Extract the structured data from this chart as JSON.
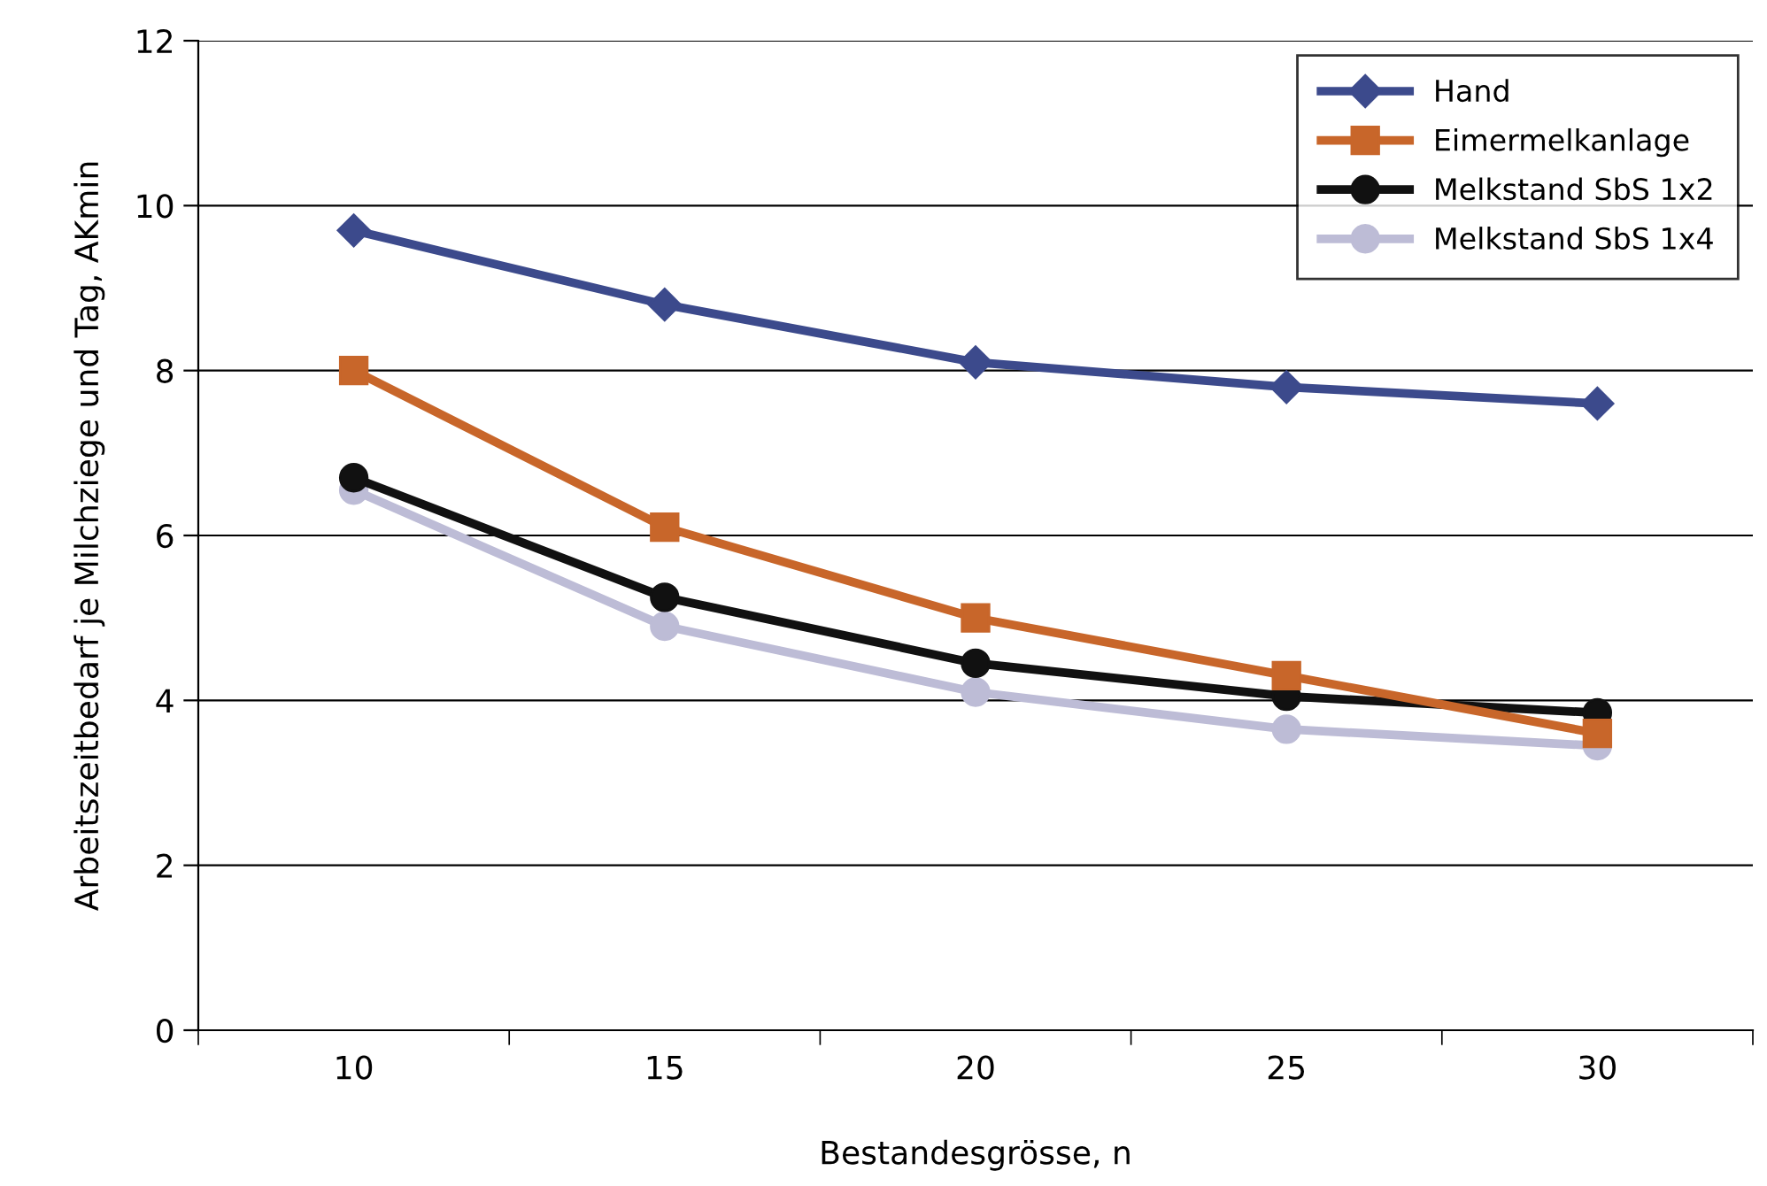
{
  "chart_data": {
    "type": "line",
    "xlabel": "Bestandesgrösse, n",
    "ylabel": "Arbeitszeitbedarf je Milchziege und Tag, AKmin",
    "categories": [
      "10",
      "15",
      "20",
      "25",
      "30"
    ],
    "series": [
      {
        "name": "Hand",
        "color": "#3c4a8c",
        "marker": "diamond",
        "values": [
          9.7,
          8.8,
          8.1,
          7.8,
          7.6
        ]
      },
      {
        "name": "Eimermelkanlage",
        "color": "#c8662a",
        "marker": "square",
        "values": [
          8.0,
          6.1,
          5.0,
          4.3,
          3.6
        ]
      },
      {
        "name": "Melkstand SbS 1x2",
        "color": "#111111",
        "marker": "circle",
        "values": [
          6.7,
          5.25,
          4.45,
          4.05,
          3.85
        ]
      },
      {
        "name": "Melkstand SbS 1x4",
        "color": "#bdbcd6",
        "marker": "circle",
        "values": [
          6.55,
          4.9,
          4.1,
          3.65,
          3.45
        ]
      }
    ],
    "ylim": [
      0,
      12
    ],
    "yticks": [
      0,
      2,
      4,
      6,
      8,
      10,
      12
    ],
    "grid": "y",
    "legend": "top right",
    "line_style": "solid"
  }
}
